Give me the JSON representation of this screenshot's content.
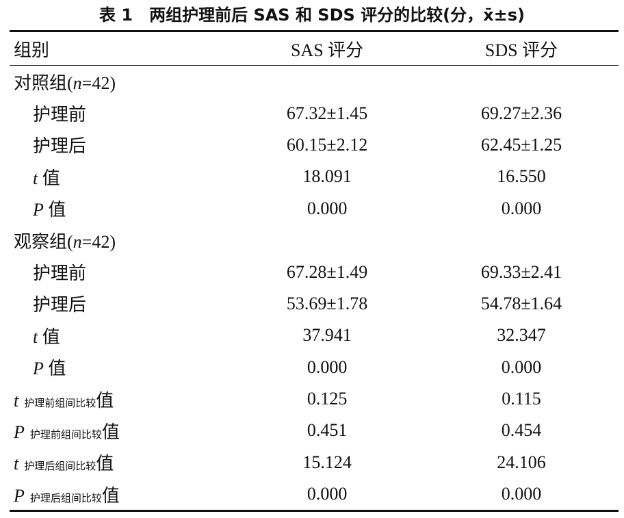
{
  "header": {
    "title": "表 1　两组护理前后 SAS 和 SDS 评分的比较(分，x̄±s)",
    "columns": [
      "组别",
      "SAS 评分",
      "SDS 评分"
    ]
  },
  "table": {
    "rows": [
      {
        "label": [
          "对照组(",
          "n",
          "=42)"
        ]
      },
      {
        "label": [
          "护理前"
        ],
        "values": [
          "67.32±1.45",
          "69.27±2.36"
        ]
      },
      {
        "label": [
          "护理后"
        ],
        "values": [
          "60.15±2.12",
          "62.45±1.25"
        ]
      },
      {
        "label": [
          "t",
          " 值"
        ],
        "values": [
          "18.091",
          "16.550"
        ]
      },
      {
        "label": [
          "P",
          " 值"
        ],
        "values": [
          "0.000",
          "0.000"
        ]
      },
      {
        "label": [
          "观察组(",
          "n",
          "=42)"
        ]
      },
      {
        "label": [
          "护理前"
        ],
        "values": [
          "67.28±1.49",
          "69.33±2.41"
        ]
      },
      {
        "label": [
          "护理后"
        ],
        "values": [
          "53.69±1.78",
          "54.78±1.64"
        ]
      },
      {
        "label": [
          "t",
          " 值"
        ],
        "values": [
          "37.941",
          "32.347"
        ]
      },
      {
        "label": [
          "P",
          " 值"
        ],
        "values": [
          "0.000",
          "0.000"
        ]
      },
      {
        "label": [
          "t",
          "护理前组间比较",
          "值"
        ],
        "values": [
          "0.125",
          "0.115"
        ]
      },
      {
        "label": [
          "P",
          "护理前组间比较",
          "值"
        ],
        "values": [
          "0.451",
          "0.454"
        ]
      },
      {
        "label": [
          "t",
          "护理后组间比较",
          "值"
        ],
        "values": [
          "15.124",
          "24.106"
        ]
      },
      {
        "label": [
          "P",
          "护理后组间比较",
          "值"
        ],
        "values": [
          "0.000",
          "0.000"
        ]
      }
    ]
  }
}
